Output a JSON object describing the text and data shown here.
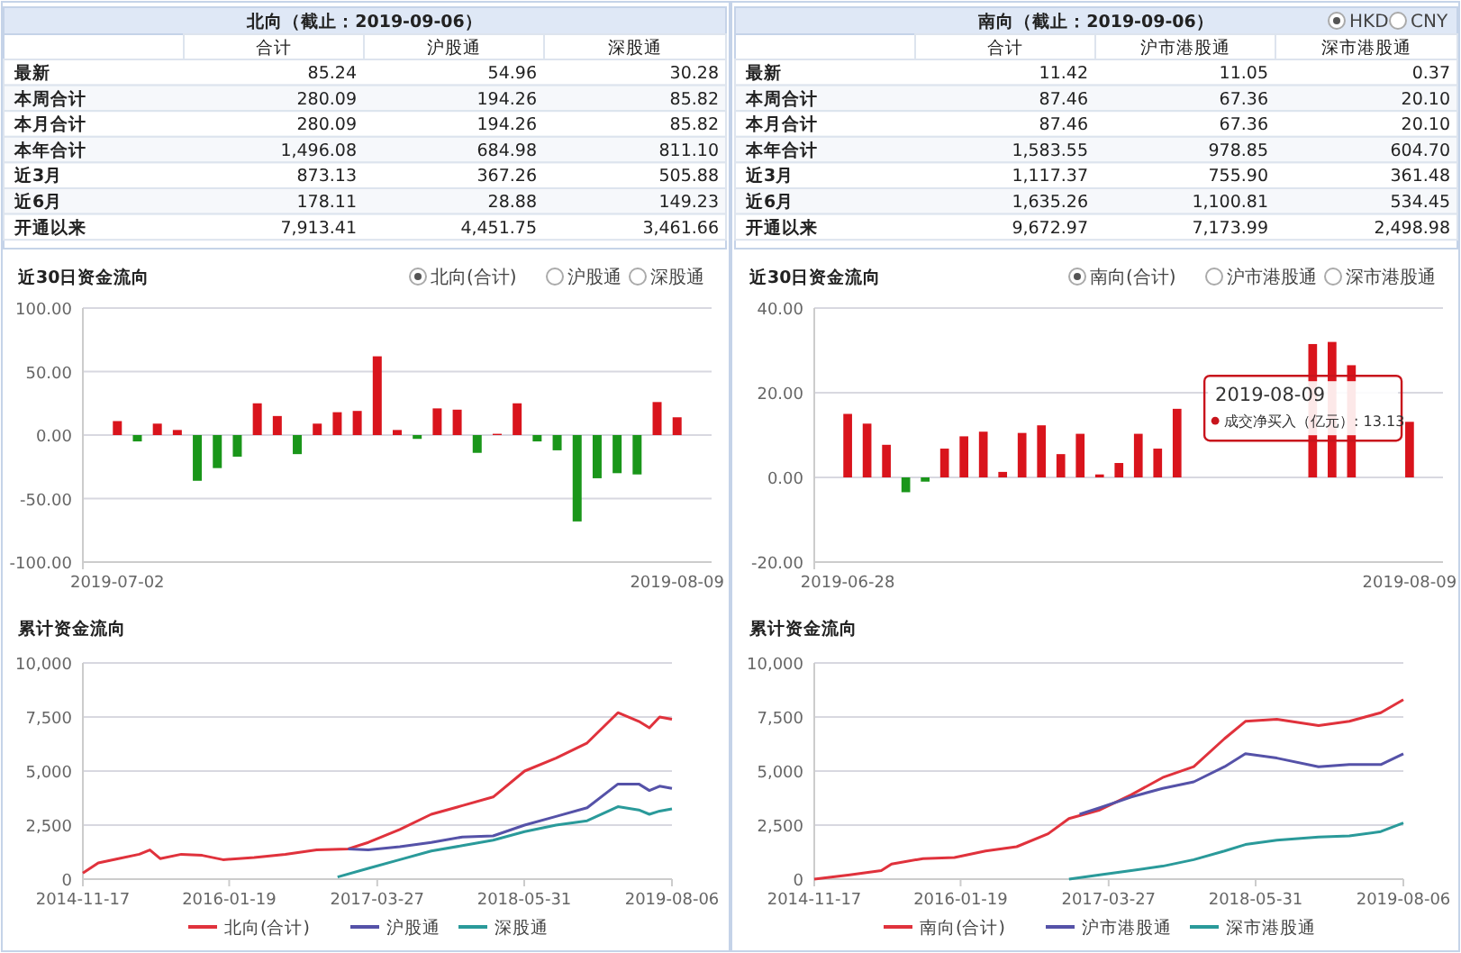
{
  "chart_data": [
    {
      "type": "other",
      "title": "北向（截止：2019-09-06）",
      "categories": [
        "合计",
        "沪股通",
        "深股通"
      ],
      "y_categories": [
        "最新",
        "本周合计",
        "本月合计",
        "本年合计",
        "近3月",
        "近6月",
        "开通以来"
      ],
      "cell_labels": [
        [
          "85.24",
          "54.96",
          "30.28"
        ],
        [
          "280.09",
          "194.26",
          "85.82"
        ],
        [
          "280.09",
          "194.26",
          "85.82"
        ],
        [
          "1,496.08",
          "684.98",
          "811.10"
        ],
        [
          "873.13",
          "367.26",
          "505.88"
        ],
        [
          "178.11",
          "28.88",
          "149.23"
        ],
        [
          "7,913.41",
          "4,451.75",
          "3,461.66"
        ]
      ]
    },
    {
      "type": "other",
      "title": "南向（截止：2019-09-06）",
      "categories": [
        "合计",
        "沪市港股通",
        "深市港股通"
      ],
      "y_categories": [
        "最新",
        "本周合计",
        "本月合计",
        "本年合计",
        "近3月",
        "近6月",
        "开通以来"
      ],
      "cell_labels": [
        [
          "11.42",
          "11.05",
          "0.37"
        ],
        [
          "87.46",
          "67.36",
          "20.10"
        ],
        [
          "87.46",
          "67.36",
          "20.10"
        ],
        [
          "1,583.55",
          "978.85",
          "604.70"
        ],
        [
          "1,117.37",
          "755.90",
          "361.48"
        ],
        [
          "1,635.26",
          "1,100.81",
          "534.45"
        ],
        [
          "9,672.97",
          "7,173.99",
          "2,498.98"
        ]
      ],
      "annotations": [
        "HKD",
        "CNY"
      ]
    },
    {
      "type": "bar",
      "title": "近30日资金流向",
      "categories": [
        "2019-07-02",
        null,
        null,
        null,
        null,
        null,
        null,
        null,
        null,
        null,
        null,
        null,
        null,
        null,
        null,
        null,
        null,
        null,
        null,
        null,
        null,
        null,
        null,
        null,
        null,
        null,
        null,
        null,
        "2019-08-09"
      ],
      "values": [
        11,
        -5,
        9,
        4,
        -36,
        -26,
        -17,
        25,
        15,
        -15,
        9,
        18,
        19,
        62,
        4,
        -3,
        21,
        20,
        -14,
        1,
        25,
        -5,
        -12,
        -68,
        -34,
        -30,
        -31,
        26,
        14
      ],
      "colors": [
        "#d9141c",
        "#1a961a",
        "#d9141c",
        "#d9141c",
        "#1a961a",
        "#1a961a",
        "#1a961a",
        "#d9141c",
        "#d9141c",
        "#1a961a",
        "#d9141c",
        "#d9141c",
        "#d9141c",
        "#d9141c",
        "#d9141c",
        "#1a961a",
        "#d9141c",
        "#d9141c",
        "#1a961a",
        "#d9141c",
        "#d9141c",
        "#1a961a",
        "#1a961a",
        "#1a961a",
        "#1a961a",
        "#1a961a",
        "#1a961a",
        "#d9141c",
        "#d9141c"
      ],
      "ylim": [
        -100,
        100
      ],
      "yticks": [
        {
          "value": -100,
          "label": "-100.00"
        },
        {
          "value": -50,
          "label": "-50.00"
        },
        {
          "value": 0,
          "label": "0.00"
        },
        {
          "value": 50,
          "label": "50.00"
        },
        {
          "value": 100,
          "label": "100.00"
        }
      ],
      "grid": "y",
      "annotations": [
        "北向(合计)",
        "沪股通",
        "深股通"
      ]
    },
    {
      "type": "bar",
      "title": "近30日资金流向",
      "categories": [
        "2019-06-28",
        null,
        null,
        null,
        null,
        null,
        null,
        null,
        null,
        null,
        null,
        null,
        null,
        null,
        null,
        null,
        null,
        null,
        null,
        null,
        null,
        null,
        null,
        null,
        null,
        null,
        null,
        null,
        null,
        "2019-08-09"
      ],
      "values": [
        15,
        12.7,
        7.7,
        -3.5,
        -1,
        6.8,
        9.7,
        10.8,
        1.3,
        10.5,
        12.3,
        5.5,
        10.3,
        0.7,
        3.4,
        10.3,
        6.8,
        16.2,
        null,
        null,
        null,
        null,
        null,
        null,
        31.5,
        32,
        26.5,
        null,
        null,
        13.13
      ],
      "colors": [
        "#d9141c",
        "#d9141c",
        "#d9141c",
        "#1a961a",
        "#1a961a",
        "#d9141c",
        "#d9141c",
        "#d9141c",
        "#d9141c",
        "#d9141c",
        "#d9141c",
        "#d9141c",
        "#d9141c",
        "#d9141c",
        "#d9141c",
        "#d9141c",
        "#d9141c",
        "#d9141c",
        "#d9141c",
        "#d9141c",
        "#d9141c",
        "#d9141c",
        "#d9141c",
        "#d9141c",
        "#d9141c",
        "#d9141c",
        "#d9141c",
        "#d9141c",
        "#d9141c",
        "#d9141c"
      ],
      "ylim": [
        -20,
        40
      ],
      "yticks": [
        {
          "value": -20,
          "label": "-20.00"
        },
        {
          "value": 0,
          "label": "0.00"
        },
        {
          "value": 20,
          "label": "20.00"
        },
        {
          "value": 40,
          "label": "40.00"
        }
      ],
      "grid": "y",
      "annotations": [
        "南向(合计)",
        "沪市港股通",
        "深市港股通",
        "2019-08-09",
        "成交净买入（亿元）: 13.13"
      ]
    },
    {
      "type": "line",
      "title": "累计资金流向",
      "xlim": [
        "2014-11-17",
        "2019-08-06"
      ],
      "xticks": [
        "2014-11-17",
        "2016-01-19",
        "2017-03-27",
        "2018-05-31",
        "2019-08-06"
      ],
      "ylim": [
        0,
        10000
      ],
      "yticks": [
        0,
        {
          "value": 2500,
          "label": "2,500"
        },
        {
          "value": 5000,
          "label": "5,000"
        },
        {
          "value": 7500,
          "label": "7,500"
        },
        {
          "value": 10000,
          "label": "10,000"
        }
      ],
      "grid": "y",
      "legend": "bottom",
      "series": [
        {
          "name": "北向(合计)",
          "color": "#e0323c",
          "x": [
            "2014-11-17",
            "2015-01",
            "2015-03",
            "2015-05",
            "2015-06",
            "2015-07",
            "2015-09",
            "2015-11",
            "2016-01",
            "2016-04",
            "2016-07",
            "2016-10",
            "2017-01",
            "2017-03",
            "2017-06",
            "2017-09",
            "2017-12",
            "2018-03",
            "2018-06",
            "2018-09",
            "2018-12",
            "2019-03",
            "2019-05",
            "2019-06",
            "2019-07",
            "2019-08-06"
          ],
          "values": [
            280,
            750,
            950,
            1150,
            1350,
            950,
            1150,
            1100,
            900,
            1000,
            1150,
            1350,
            1400,
            1700,
            2300,
            3000,
            3400,
            3800,
            5000,
            5600,
            6300,
            7700,
            7300,
            7000,
            7500,
            7400
          ]
        },
        {
          "name": "沪股通",
          "color": "#5552a8",
          "x": [
            "2017-01",
            "2017-03",
            "2017-06",
            "2017-09",
            "2017-12",
            "2018-03",
            "2018-06",
            "2018-09",
            "2018-12",
            "2019-03",
            "2019-05",
            "2019-06",
            "2019-07",
            "2019-08-06"
          ],
          "values": [
            1400,
            1350,
            1500,
            1700,
            1950,
            2000,
            2500,
            2900,
            3300,
            4400,
            4400,
            4100,
            4300,
            4200
          ]
        },
        {
          "name": "深股通",
          "color": "#2a9a9a",
          "x": [
            "2016-12",
            "2017-03",
            "2017-06",
            "2017-09",
            "2017-12",
            "2018-03",
            "2018-06",
            "2018-09",
            "2018-12",
            "2019-03",
            "2019-05",
            "2019-06",
            "2019-07",
            "2019-08-06"
          ],
          "values": [
            100,
            500,
            900,
            1300,
            1550,
            1800,
            2200,
            2500,
            2700,
            3350,
            3200,
            3000,
            3150,
            3250
          ]
        }
      ]
    },
    {
      "type": "line",
      "title": "累计资金流向",
      "xlim": [
        "2014-11-17",
        "2019-08-06"
      ],
      "xticks": [
        "2014-11-17",
        "2016-01-19",
        "2017-03-27",
        "2018-05-31",
        "2019-08-06"
      ],
      "ylim": [
        0,
        10000
      ],
      "yticks": [
        0,
        {
          "value": 2500,
          "label": "2,500"
        },
        {
          "value": 5000,
          "label": "5,000"
        },
        {
          "value": 7500,
          "label": "7,500"
        },
        {
          "value": 10000,
          "label": "10,000"
        }
      ],
      "grid": "y",
      "legend": "bottom",
      "series": [
        {
          "name": "南向(合计)",
          "color": "#e0323c",
          "x": [
            "2014-11-17",
            "2015-03",
            "2015-06",
            "2015-07",
            "2015-10",
            "2016-01",
            "2016-04",
            "2016-07",
            "2016-10",
            "2016-12",
            "2017-03",
            "2017-06",
            "2017-09",
            "2017-12",
            "2018-03",
            "2018-05",
            "2018-08",
            "2018-12",
            "2019-03",
            "2019-06",
            "2019-08-06"
          ],
          "values": [
            0,
            200,
            400,
            700,
            950,
            1000,
            1300,
            1500,
            2100,
            2800,
            3200,
            3900,
            4700,
            5200,
            6500,
            7300,
            7400,
            7100,
            7300,
            7700,
            8300
          ]
        },
        {
          "name": "沪市港股通",
          "color": "#5552a8",
          "x": [
            "2017-01",
            "2017-03",
            "2017-06",
            "2017-09",
            "2017-12",
            "2018-03",
            "2018-05",
            "2018-08",
            "2018-12",
            "2019-03",
            "2019-06",
            "2019-08-06"
          ],
          "values": [
            3000,
            3300,
            3800,
            4200,
            4500,
            5200,
            5800,
            5600,
            5200,
            5300,
            5300,
            5800
          ]
        },
        {
          "name": "深市港股通",
          "color": "#2a9a9a",
          "x": [
            "2016-12",
            "2017-03",
            "2017-06",
            "2017-09",
            "2017-12",
            "2018-03",
            "2018-05",
            "2018-08",
            "2018-12",
            "2019-03",
            "2019-06",
            "2019-08-06"
          ],
          "values": [
            0,
            200,
            400,
            600,
            900,
            1300,
            1600,
            1800,
            1950,
            2000,
            2200,
            2600
          ]
        }
      ]
    }
  ]
}
